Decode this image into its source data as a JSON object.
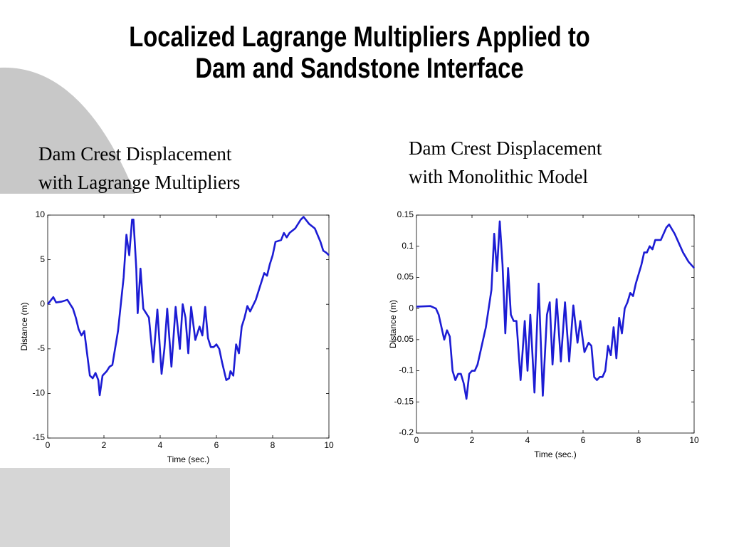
{
  "title": "Localized Lagrange Multipliers Applied to\nDam and Sandstone Interface",
  "chart_data": [
    {
      "type": "line",
      "title": "Dam Crest Displacement\nwith Lagrange Multipliers",
      "xlabel": "Time (sec.)",
      "ylabel": "Distance (m)",
      "color": "#1c1cd4",
      "x": [
        0,
        0.2,
        0.3,
        0.5,
        0.7,
        0.9,
        1.0,
        1.1,
        1.2,
        1.3,
        1.4,
        1.5,
        1.6,
        1.7,
        1.8,
        1.85,
        1.95,
        2.1,
        2.2,
        2.3,
        2.5,
        2.7,
        2.8,
        2.9,
        3.0,
        3.05,
        3.15,
        3.2,
        3.3,
        3.4,
        3.5,
        3.6,
        3.75,
        3.9,
        4.05,
        4.15,
        4.25,
        4.4,
        4.55,
        4.7,
        4.8,
        4.9,
        5.0,
        5.1,
        5.25,
        5.4,
        5.5,
        5.6,
        5.7,
        5.8,
        5.9,
        6.0,
        6.1,
        6.2,
        6.35,
        6.45,
        6.5,
        6.6,
        6.7,
        6.8,
        6.9,
        7.0,
        7.1,
        7.2,
        7.4,
        7.5,
        7.6,
        7.7,
        7.8,
        7.9,
        8.0,
        8.1,
        8.3,
        8.4,
        8.5,
        8.6,
        8.8,
        9.0,
        9.1,
        9.3,
        9.5,
        9.7,
        9.8,
        9.9,
        10.0
      ],
      "values": [
        0,
        0.8,
        0.2,
        0.3,
        0.5,
        -0.5,
        -1.5,
        -2.8,
        -3.5,
        -3.0,
        -5.5,
        -8.0,
        -8.3,
        -7.7,
        -8.5,
        -10.2,
        -8.0,
        -7.5,
        -7.0,
        -6.8,
        -3.0,
        3.0,
        7.8,
        5.5,
        9.5,
        9.5,
        4.0,
        -1.0,
        4.0,
        -0.5,
        -1.0,
        -1.5,
        -6.5,
        -0.6,
        -7.8,
        -5,
        -0.5,
        -7.0,
        -0.3,
        -5.0,
        0.0,
        -1.5,
        -5.5,
        -0.3,
        -4.0,
        -2.5,
        -3.5,
        -0.3,
        -3.8,
        -4.8,
        -4.8,
        -4.5,
        -5.0,
        -6.5,
        -8.5,
        -8.3,
        -7.5,
        -8.0,
        -4.5,
        -5.5,
        -2.5,
        -1.5,
        -0.2,
        -0.8,
        0.5,
        1.5,
        2.5,
        3.5,
        3.2,
        4.5,
        5.5,
        7.0,
        7.2,
        8.0,
        7.5,
        8.0,
        8.5,
        9.5,
        9.8,
        9.0,
        8.5,
        7.0,
        6.0,
        5.8,
        5.5
      ],
      "xlim": [
        0,
        10
      ],
      "xticks": [
        0,
        2,
        4,
        6,
        8,
        10
      ],
      "ylim": [
        -15,
        10
      ],
      "yticks": [
        -15,
        -10,
        -5,
        0,
        5,
        10
      ]
    },
    {
      "type": "line",
      "title": "Dam Crest Displacement\nwith Monolithic Model",
      "xlabel": "Time (sec.)",
      "ylabel": "Distance (m)",
      "color": "#1c1cd4",
      "x": [
        0,
        0.5,
        0.7,
        0.8,
        0.9,
        1.0,
        1.1,
        1.2,
        1.3,
        1.4,
        1.5,
        1.6,
        1.7,
        1.8,
        1.9,
        2.0,
        2.1,
        2.2,
        2.3,
        2.5,
        2.7,
        2.8,
        2.9,
        3.0,
        3.1,
        3.2,
        3.3,
        3.4,
        3.5,
        3.6,
        3.75,
        3.9,
        4.0,
        4.1,
        4.25,
        4.4,
        4.55,
        4.7,
        4.8,
        4.9,
        5.05,
        5.2,
        5.35,
        5.5,
        5.65,
        5.8,
        5.9,
        6.05,
        6.2,
        6.3,
        6.4,
        6.5,
        6.6,
        6.7,
        6.8,
        6.9,
        7.0,
        7.1,
        7.2,
        7.3,
        7.4,
        7.5,
        7.6,
        7.7,
        7.8,
        7.9,
        8.0,
        8.1,
        8.2,
        8.3,
        8.4,
        8.5,
        8.6,
        8.8,
        9.0,
        9.1,
        9.3,
        9.5,
        9.6,
        9.8,
        9.9,
        10.0
      ],
      "values": [
        0.003,
        0.004,
        0,
        -0.01,
        -0.03,
        -0.05,
        -0.035,
        -0.045,
        -0.1,
        -0.115,
        -0.105,
        -0.105,
        -0.12,
        -0.145,
        -0.105,
        -0.1,
        -0.1,
        -0.09,
        -0.07,
        -0.03,
        0.03,
        0.12,
        0.06,
        0.14,
        0.07,
        -0.04,
        0.065,
        -0.01,
        -0.02,
        -0.02,
        -0.115,
        -0.02,
        -0.1,
        -0.01,
        -0.135,
        0.04,
        -0.14,
        -0.01,
        0.01,
        -0.09,
        0.015,
        -0.085,
        0.01,
        -0.085,
        0.005,
        -0.055,
        -0.02,
        -0.07,
        -0.055,
        -0.06,
        -0.11,
        -0.115,
        -0.11,
        -0.11,
        -0.1,
        -0.06,
        -0.075,
        -0.03,
        -0.08,
        -0.015,
        -0.04,
        0.0,
        0.01,
        0.025,
        0.02,
        0.04,
        0.055,
        0.07,
        0.09,
        0.09,
        0.1,
        0.095,
        0.11,
        0.11,
        0.13,
        0.135,
        0.12,
        0.1,
        0.09,
        0.075,
        0.07,
        0.065
      ],
      "xlim": [
        0,
        10
      ],
      "xticks": [
        0,
        2,
        4,
        6,
        8,
        10
      ],
      "ylim": [
        -0.2,
        0.15
      ],
      "yticks": [
        -0.2,
        -0.15,
        -0.1,
        -0.05,
        0,
        0.05,
        0.1,
        0.15
      ]
    }
  ]
}
